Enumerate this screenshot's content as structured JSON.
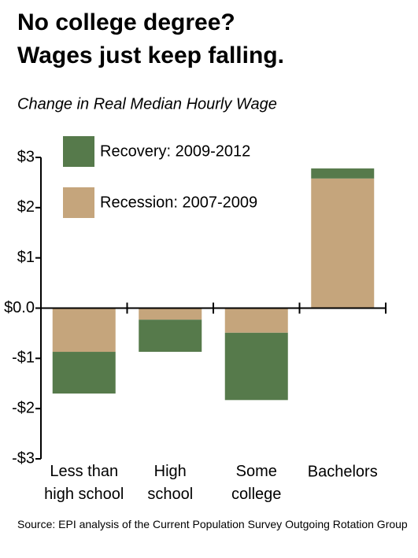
{
  "chart_data": {
    "type": "stacked_bar",
    "title": "No college degree?\nWages just keep falling.",
    "subtitle": "Change in Real Median Hourly Wage",
    "source": "Source: EPI analysis of the Current Population Survey Outgoing Rotation Group",
    "categories": [
      "Less than\nhigh school",
      "High\nschool",
      "Some\ncollege",
      "Bachelors"
    ],
    "series": [
      {
        "name": "Recession: 2007-2009",
        "color": "#c5a57c",
        "values": [
          -0.87,
          -0.23,
          -0.49,
          2.58
        ]
      },
      {
        "name": "Recovery: 2009-2012",
        "color": "#567a4b",
        "values": [
          -0.83,
          -0.64,
          -1.34,
          0.2
        ]
      }
    ],
    "legend_order": [
      1,
      0
    ],
    "ylim": [
      -3,
      3
    ],
    "yticks": [
      {
        "value": 3,
        "label": "$3"
      },
      {
        "value": 2,
        "label": "$2"
      },
      {
        "value": 1,
        "label": "$1"
      },
      {
        "value": 0,
        "label": "$0.0"
      },
      {
        "value": -1,
        "label": "-$1"
      },
      {
        "value": -2,
        "label": "-$2"
      },
      {
        "value": -3,
        "label": "-$3"
      }
    ]
  }
}
